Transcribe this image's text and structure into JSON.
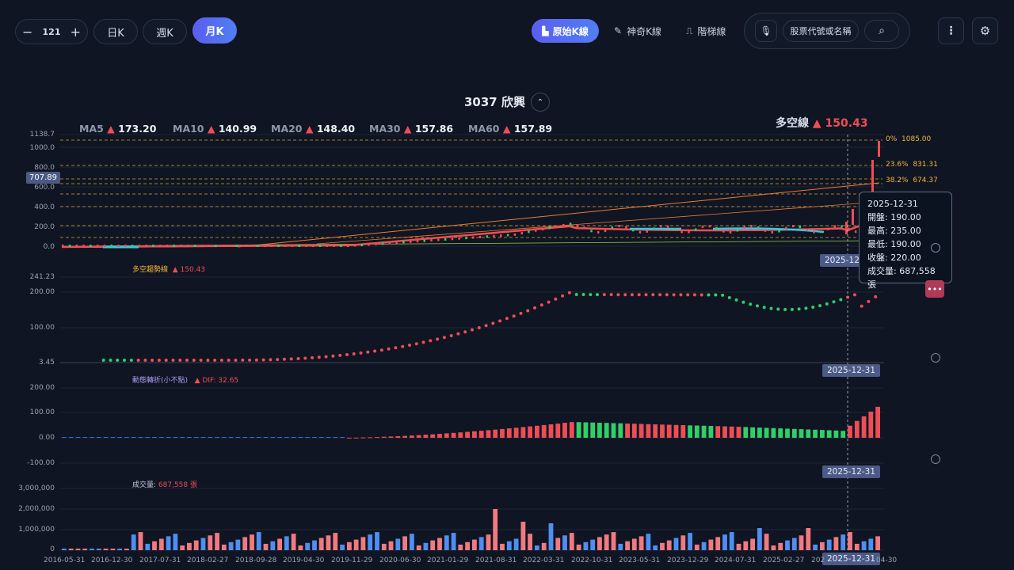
{
  "toolbar": {
    "minus": "−",
    "count": "121",
    "plus": "+",
    "periods": [
      "日K",
      "週K",
      "月K"
    ],
    "modes": [
      "原始K線",
      "神奇K線",
      "階梯線"
    ],
    "search_placeholder": "股票代號或名稱"
  },
  "title": "3037 欣興",
  "ma": [
    {
      "name": "MA5",
      "arrow": "▲",
      "value": "173.20"
    },
    {
      "name": "MA10",
      "arrow": "▲",
      "value": "140.99"
    },
    {
      "name": "MA20",
      "arrow": "▲",
      "value": "148.40"
    },
    {
      "name": "MA30",
      "arrow": "▲",
      "value": "157.86"
    },
    {
      "name": "MA60",
      "arrow": "▲",
      "value": "157.89"
    }
  ],
  "trend_line": {
    "name": "多空線",
    "arrow": "▲",
    "value": "150.43"
  },
  "price_axis": [
    "1138.7",
    "1000.0",
    "800.0",
    "600.0",
    "400.0",
    "200.0",
    "0.0"
  ],
  "price_cursor": "707.89",
  "fib": [
    {
      "label": "0%",
      "value": "1085.00"
    },
    {
      "label": "23.6%",
      "value": "831.31"
    },
    {
      "label": "38.2%",
      "value": "674.37"
    }
  ],
  "cursor_date": "2025-12-31",
  "tooltip": {
    "date": "2025-12-31",
    "open": "開盤: 190.00",
    "high": "最高: 235.00",
    "low": "最低: 190.00",
    "close": "收盤: 220.00",
    "volume": "成交量: 687,558 張"
  },
  "trend_panel": {
    "label": "多空趨勢線",
    "arrow": "▲",
    "value": "150.43",
    "axis": [
      "241.23",
      "200.00",
      "100.00",
      "3.45"
    ]
  },
  "macd_panel": {
    "label": "動態轉折(小不點)",
    "arrow": "▲",
    "dif": "DIF: 32.65",
    "axis": [
      "200.00",
      "100.00",
      "0.00",
      "-100.00"
    ]
  },
  "vol_panel": {
    "label": "成交量:",
    "value": "687,558 張",
    "axis": [
      "3,000,000",
      "2,000,000",
      "1,000,000",
      "0"
    ]
  },
  "x_dates": [
    "2016-05-31",
    "2016-12-30",
    "2017-07-31",
    "2018-02-27",
    "2018-09-28",
    "2019-04-30",
    "2019-11-29",
    "2020-06-30",
    "2021-01-29",
    "2021-08-31",
    "2022-03-31",
    "2022-10-31",
    "2023-05-31",
    "2023-12-29",
    "2024-07-31",
    "2025-02-27",
    "202",
    "04-30"
  ],
  "colors": {
    "up": "#ef4d56",
    "down": "#2fcf6a",
    "accent": "#5b6cf0",
    "fib": "#f3b73a",
    "vol_blue": "#4f8ef2"
  }
}
